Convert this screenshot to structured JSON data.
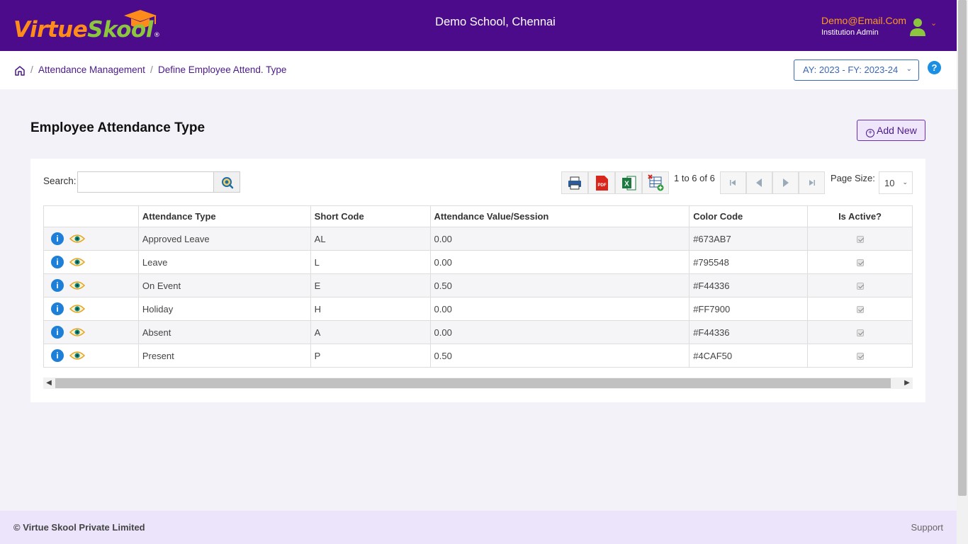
{
  "header": {
    "logo_brand_first": "Virtue",
    "logo_brand_second": "Skool",
    "logo_registered": "®",
    "school_name": "Demo School, Chennai",
    "user_email": "Demo@Email.Com",
    "user_role": "Institution Admin"
  },
  "breadcrumb": {
    "items": [
      "Attendance Management",
      "Define Employee Attend. Type"
    ],
    "separator": "/"
  },
  "year_selector": {
    "value": "AY: 2023 - FY: 2023-24"
  },
  "help": {
    "label": "?"
  },
  "page": {
    "title": "Employee Attendance Type",
    "add_button": "Add New"
  },
  "grid": {
    "search_label": "Search:",
    "search_value": "",
    "pager_summary": "1 to 6 of 6",
    "page_size_label": "Page Size:",
    "page_size_value": "10",
    "columns": [
      "",
      "Attendance Type",
      "Short Code",
      "Attendance Value/Session",
      "Color Code",
      "Is Active?"
    ],
    "rows": [
      {
        "attendance_type": "Approved Leave",
        "short_code": "AL",
        "value": "0.00",
        "color_code": "#673AB7",
        "is_active": true
      },
      {
        "attendance_type": "Leave",
        "short_code": "L",
        "value": "0.00",
        "color_code": "#795548",
        "is_active": true
      },
      {
        "attendance_type": "On Event",
        "short_code": "E",
        "value": "0.50",
        "color_code": "#F44336",
        "is_active": true
      },
      {
        "attendance_type": "Holiday",
        "short_code": "H",
        "value": "0.00",
        "color_code": "#FF7900",
        "is_active": true
      },
      {
        "attendance_type": "Absent",
        "short_code": "A",
        "value": "0.00",
        "color_code": "#F44336",
        "is_active": true
      },
      {
        "attendance_type": "Present",
        "short_code": "P",
        "value": "0.50",
        "color_code": "#4CAF50",
        "is_active": true
      }
    ],
    "info_icon_glyph": "i"
  },
  "footer": {
    "copyright": "© Virtue Skool Private Limited",
    "support": "Support"
  },
  "colors": {
    "header_bg": "#4b0b8a",
    "accent_orange": "#ff9b1f",
    "accent_green": "#8cc63f",
    "footer_bg": "#ece4fb"
  }
}
